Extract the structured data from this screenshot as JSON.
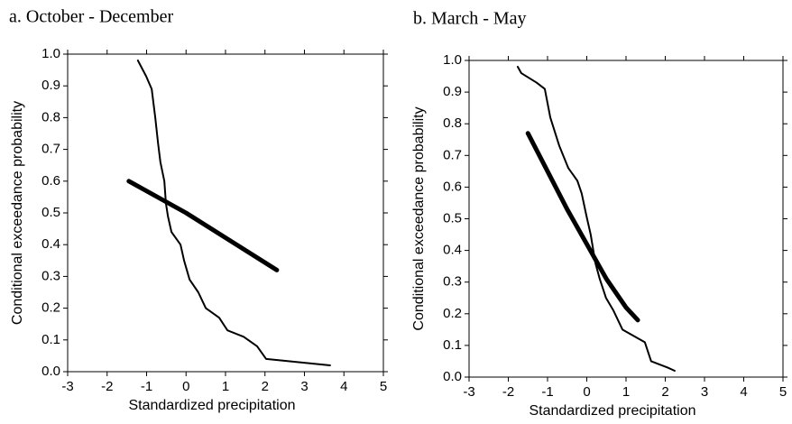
{
  "chart_data": [
    {
      "type": "line",
      "title": "a. October - December",
      "xlabel": "Standardized precipitation",
      "ylabel": "Conditional exceedance probability",
      "xlim": [
        -3,
        5
      ],
      "xticks": [
        -3,
        -2,
        -1,
        0,
        1,
        2,
        3,
        4,
        5
      ],
      "ylim": [
        0,
        1
      ],
      "yticks": [
        {
          "value": 0,
          "label": "0.0"
        },
        0.1,
        0.2,
        0.3,
        0.4,
        0.5,
        0.6,
        0.7,
        0.8,
        0.9,
        {
          "value": 1,
          "label": "1.0"
        }
      ],
      "series": [
        {
          "color": "#000000",
          "line_width": 2,
          "x": [
            -1.22,
            -1.01,
            -0.87,
            -0.78,
            -0.71,
            -0.65,
            -0.55,
            -0.51,
            -0.46,
            -0.37,
            -0.14,
            -0.05,
            0.09,
            0.31,
            0.5,
            0.84,
            1.05,
            1.46,
            1.8,
            2.03,
            3.65
          ],
          "values": [
            0.98,
            0.93,
            0.89,
            0.8,
            0.72,
            0.66,
            0.6,
            0.53,
            0.49,
            0.44,
            0.4,
            0.35,
            0.29,
            0.25,
            0.2,
            0.17,
            0.13,
            0.11,
            0.08,
            0.04,
            0.02
          ]
        },
        {
          "color": "#000000",
          "line_width": 5,
          "x": [
            -1.45,
            0,
            2.3
          ],
          "values": [
            0.6,
            0.5,
            0.32
          ]
        }
      ]
    },
    {
      "type": "line",
      "title": "b. March - May",
      "xlabel": "Standardized precipitation",
      "ylabel": "Conditional exceedance probability",
      "xlim": [
        -3,
        5
      ],
      "xticks": [
        -3,
        -2,
        -1,
        0,
        1,
        2,
        3,
        4,
        5
      ],
      "ylim": [
        0,
        1
      ],
      "yticks": [
        {
          "value": 0,
          "label": "0.0"
        },
        0.1,
        0.2,
        0.3,
        0.4,
        0.5,
        0.6,
        0.7,
        0.8,
        0.9,
        {
          "value": 1,
          "label": "1.0"
        }
      ],
      "series": [
        {
          "color": "#000000",
          "line_width": 2,
          "x": [
            -1.76,
            -1.67,
            -1.28,
            -1.07,
            -0.93,
            -0.7,
            -0.47,
            -0.24,
            -0.13,
            -0.01,
            0.1,
            0.22,
            0.33,
            0.49,
            0.68,
            0.91,
            1.48,
            1.64,
            2.06,
            2.24
          ],
          "values": [
            0.98,
            0.96,
            0.93,
            0.91,
            0.82,
            0.73,
            0.66,
            0.62,
            0.58,
            0.51,
            0.45,
            0.36,
            0.31,
            0.25,
            0.21,
            0.15,
            0.11,
            0.05,
            0.03,
            0.02
          ]
        },
        {
          "color": "#000000",
          "line_width": 5,
          "x": [
            -1.5,
            -1,
            -0.5,
            0,
            0.5,
            1,
            1.3
          ],
          "values": [
            0.77,
            0.65,
            0.53,
            0.42,
            0.31,
            0.22,
            0.18
          ]
        }
      ]
    }
  ]
}
